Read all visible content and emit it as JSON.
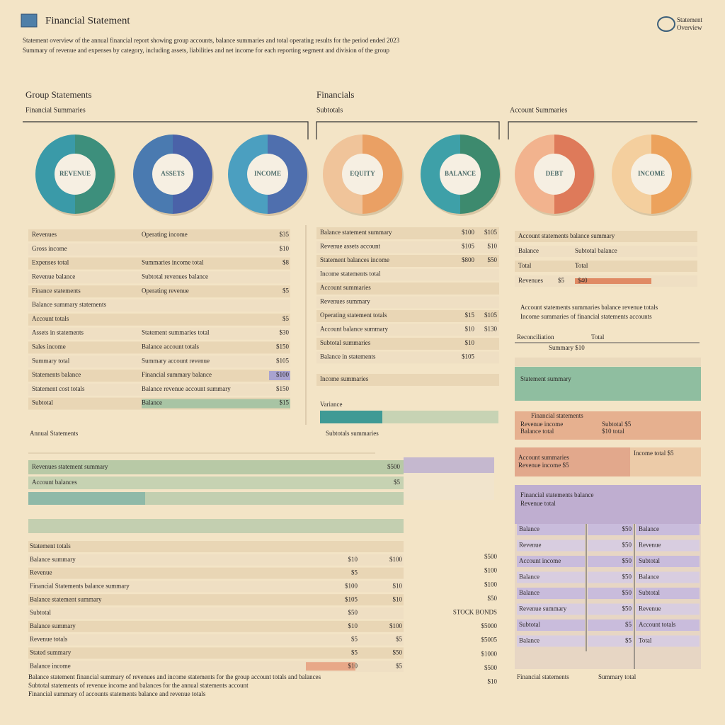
{
  "header": {
    "title": "Financial Statement",
    "logo": [
      "Statement",
      "Overview"
    ]
  },
  "intro": [
    "Statement overview of the annual financial report showing group accounts, balance summaries and total operating results for the period ended 2023",
    "Summary of revenue and expenses by category, including assets, liabilities and net income for each reporting segment and division of the group"
  ],
  "sections": [
    {
      "title": "Group Statements",
      "subtitle": "Financial Summaries"
    },
    {
      "title": "Financials",
      "subtitle": "Subtotals"
    },
    {
      "subtitle": "Account Summaries"
    }
  ],
  "donuts": [
    "REVENUE",
    "ASSETS",
    "INCOME",
    "EQUITY",
    "BALANCE",
    "DEBT",
    "INCOME"
  ],
  "left_table": [
    [
      "Revenues",
      "Operating income",
      "$35"
    ],
    [
      "Gross income",
      "",
      "$10"
    ],
    [
      "Expenses total",
      "Summaries income total",
      "$8"
    ],
    [
      "Revenue balance",
      "Subtotal revenues balance"
    ],
    [
      "Finance statements",
      "Operating revenue",
      "$5"
    ],
    [
      "Balance summary statements"
    ],
    [
      "Account totals",
      "",
      "$5"
    ],
    [
      "Assets in statements",
      "Statement summaries total",
      "$30"
    ],
    [
      "Sales income",
      "Balance account totals",
      "$150"
    ],
    [
      "Summary total",
      "Summary account revenue",
      "$105"
    ],
    [
      "Statements balance",
      "Financial summary balance",
      "$100"
    ],
    [
      "Statement cost totals",
      "Balance revenue account summary",
      "$150"
    ],
    [
      "Subtotal",
      "Balance",
      "$15"
    ]
  ],
  "mid_table": [
    [
      "Balance statement summary",
      "$100",
      "$105"
    ],
    [
      "Revenue assets account",
      "$105",
      "$10"
    ],
    [
      "Statement balances income",
      "$800",
      "$50"
    ],
    [
      "Income statements total"
    ],
    [
      "Account summaries"
    ],
    [
      "Revenues summary"
    ],
    [
      "Operating statement totals",
      "$15",
      "$105"
    ],
    [
      "Account balance summary",
      "$10",
      "$130"
    ],
    [
      "Subtotal summaries",
      "$10"
    ],
    [
      "Balance in statements",
      "$105"
    ],
    [
      "Income summaries"
    ]
  ],
  "mid_bar_label": "Variance",
  "mid_footer": "Subtotals summaries",
  "right_rows": [
    [
      "Account statements balance summary"
    ],
    [
      "Balance",
      "Subtotal balance"
    ],
    [
      "Total",
      "Total"
    ],
    [
      "Revenues",
      "$5",
      "$40"
    ]
  ],
  "right_notes": [
    "Account statements summaries balance revenue totals",
    "Income summaries of financial statements accounts"
  ],
  "right_header": [
    "Reconciliation",
    "Total"
  ],
  "right_subheader": "Summary $10",
  "green_block": "Statement summary",
  "coral_block": {
    "title": "Financial statements",
    "lines": [
      [
        "Revenue income",
        "Subtotal $5"
      ],
      [
        "Balance total",
        "$10 total"
      ]
    ]
  },
  "split_box": {
    "left": [
      "Account summaries",
      "Revenue income $5"
    ],
    "right": "Income total $5"
  },
  "purple_box": {
    "lines": [
      "Financial statements balance",
      "Revenue total"
    ],
    "rows": [
      [
        "Balance",
        "$50",
        "Balance"
      ],
      [
        "Revenue",
        "$50",
        "Revenue"
      ],
      [
        "Account income",
        "$50",
        "Subtotal"
      ],
      [
        "Balance",
        "$50",
        "Balance"
      ],
      [
        "Balance",
        "$50",
        "Subtotal"
      ],
      [
        "Revenue summary",
        "$50",
        "Revenue"
      ],
      [
        "Subtotal",
        "$5",
        "Account totals"
      ],
      [
        "Balance",
        "$5",
        "Total"
      ]
    ],
    "footer": [
      "Financial statements",
      "Summary total"
    ]
  },
  "annual": {
    "title": "Annual Statements",
    "top_rows": [
      [
        "Revenues statement summary",
        "$500"
      ],
      [
        "Account balances",
        "$5"
      ]
    ],
    "rows": [
      [
        "Statement totals"
      ],
      [
        "Balance summary",
        "$10",
        "$100"
      ],
      [
        "Revenue",
        "$5"
      ],
      [
        "Financial Statements balance summary",
        "$100",
        "$10"
      ],
      [
        "Balance statement summary",
        "$105",
        "$10"
      ],
      [
        "Subtotal",
        "$50"
      ],
      [
        "Balance summary",
        "$10",
        "$100"
      ],
      [
        "Revenue totals",
        "$5",
        "$5"
      ],
      [
        "Stated summary",
        "$5",
        "$50"
      ],
      [
        "Balance income",
        "$10",
        "$5"
      ]
    ],
    "side_values": [
      "$500",
      "$100",
      "$100",
      "$50",
      "STOCK BONDS",
      "$5000",
      "$5005",
      "$1000",
      "$500",
      "$10"
    ],
    "notes": [
      "Balance statement financial summary of revenues and income statements for the group account totals and balances",
      "Subtotal statements of revenue income and balances for the annual statements account",
      "Financial summary of accounts statements balance and revenue totals"
    ]
  }
}
